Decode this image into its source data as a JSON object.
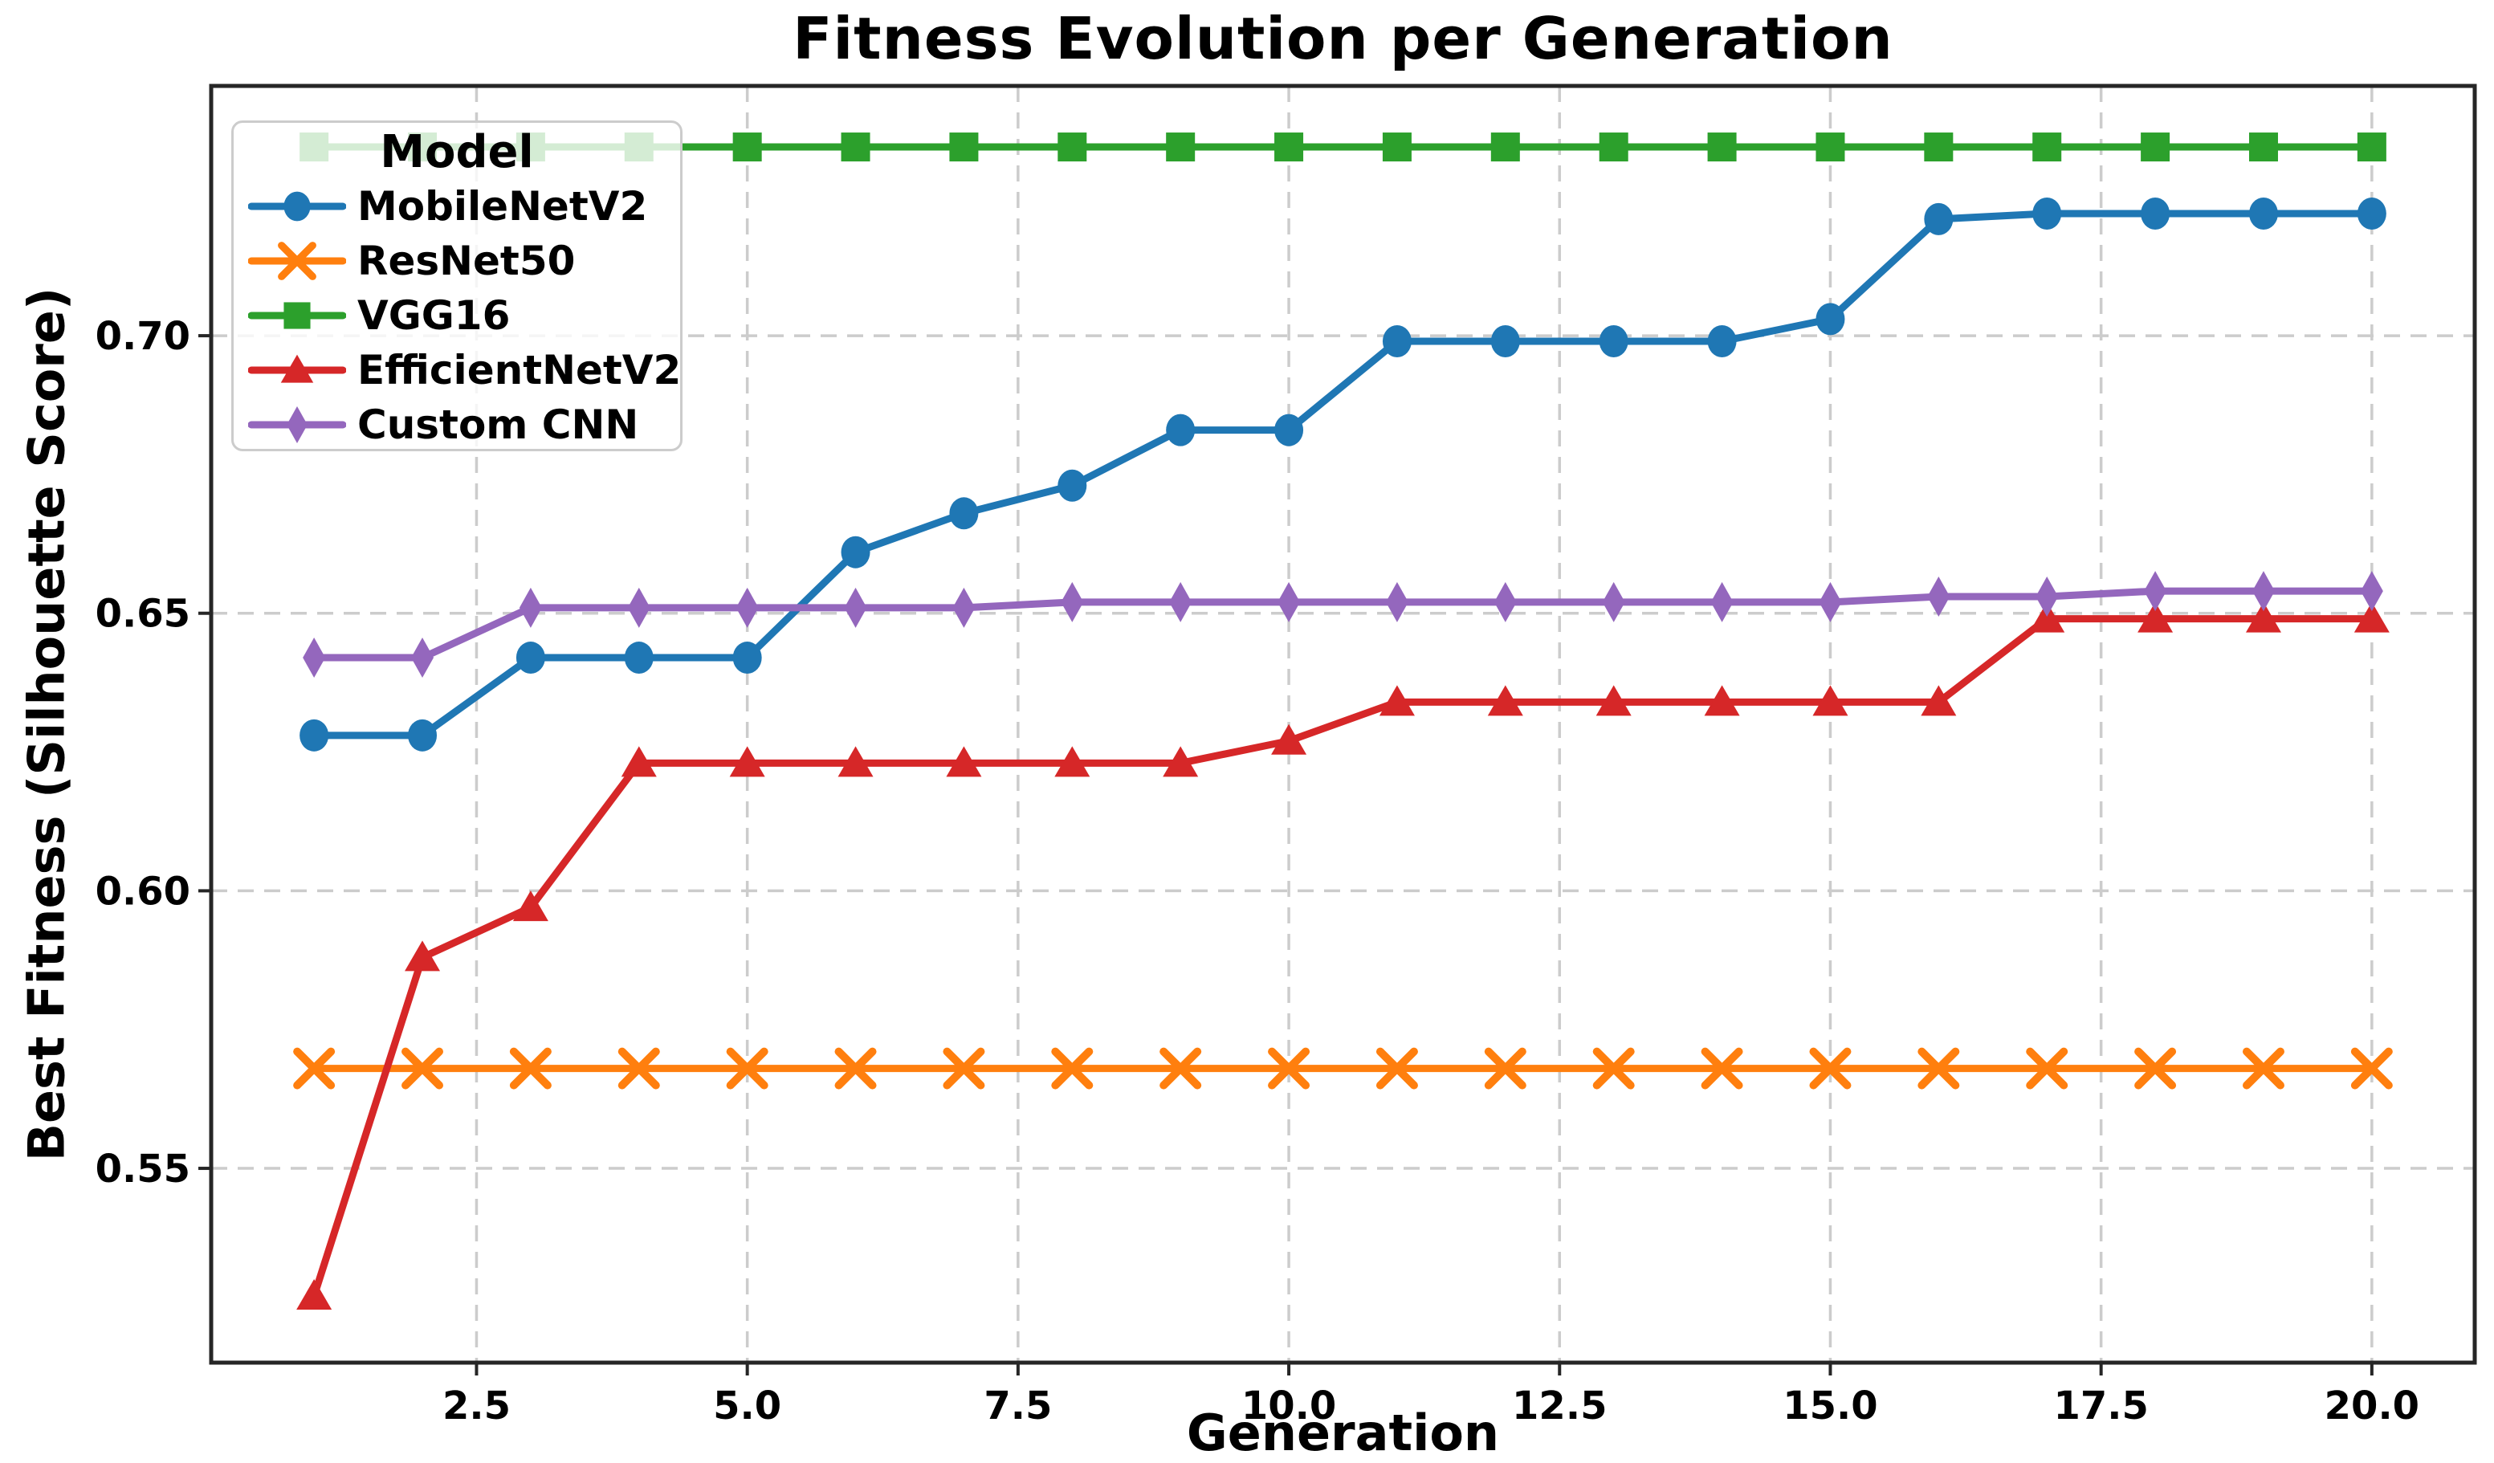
{
  "chart_data": {
    "type": "line",
    "title": "Fitness Evolution per Generation",
    "xlabel": "Generation",
    "ylabel": "Best Fitness (Silhouette Score)",
    "x": [
      1,
      2,
      3,
      4,
      5,
      6,
      7,
      8,
      9,
      10,
      11,
      12,
      13,
      14,
      15,
      16,
      17,
      18,
      19,
      20
    ],
    "series": [
      {
        "name": "MobileNetV2",
        "color": "#1f77b4",
        "marker": "circle",
        "values": [
          0.628,
          0.628,
          0.642,
          0.642,
          0.642,
          0.661,
          0.668,
          0.673,
          0.683,
          0.683,
          0.699,
          0.699,
          0.699,
          0.699,
          0.703,
          0.721,
          0.722,
          0.722,
          0.722,
          0.722
        ]
      },
      {
        "name": "ResNet50",
        "color": "#ff7f0e",
        "marker": "x",
        "values": [
          0.568,
          0.568,
          0.568,
          0.568,
          0.568,
          0.568,
          0.568,
          0.568,
          0.568,
          0.568,
          0.568,
          0.568,
          0.568,
          0.568,
          0.568,
          0.568,
          0.568,
          0.568,
          0.568,
          0.568
        ]
      },
      {
        "name": "VGG16",
        "color": "#2ca02c",
        "marker": "square",
        "values": [
          0.734,
          0.734,
          0.734,
          0.734,
          0.734,
          0.734,
          0.734,
          0.734,
          0.734,
          0.734,
          0.734,
          0.734,
          0.734,
          0.734,
          0.734,
          0.734,
          0.734,
          0.734,
          0.734,
          0.734
        ]
      },
      {
        "name": "EfficientNetV2",
        "color": "#d62728",
        "marker": "triangle",
        "values": [
          0.527,
          0.588,
          0.597,
          0.623,
          0.623,
          0.623,
          0.623,
          0.623,
          0.623,
          0.627,
          0.634,
          0.634,
          0.634,
          0.634,
          0.634,
          0.634,
          0.649,
          0.649,
          0.649,
          0.649
        ]
      },
      {
        "name": "Custom CNN",
        "color": "#9467bd",
        "marker": "thin-diamond",
        "values": [
          0.642,
          0.642,
          0.651,
          0.651,
          0.651,
          0.651,
          0.651,
          0.652,
          0.652,
          0.652,
          0.652,
          0.652,
          0.652,
          0.652,
          0.652,
          0.653,
          0.653,
          0.654,
          0.654,
          0.654
        ]
      }
    ],
    "xticks": {
      "values": [
        2.5,
        5.0,
        7.5,
        10.0,
        12.5,
        15.0,
        17.5,
        20.0
      ],
      "labels": [
        "2.5",
        "5.0",
        "7.5",
        "10.0",
        "12.5",
        "15.0",
        "17.5",
        "20.0"
      ]
    },
    "yticks": {
      "values": [
        0.55,
        0.6,
        0.65,
        0.7
      ],
      "labels": [
        "0.55",
        "0.60",
        "0.65",
        "0.70"
      ]
    },
    "xlim": [
      0.05,
      20.95
    ],
    "ylim": [
      0.515,
      0.745
    ],
    "grid": true,
    "legend": {
      "title": "Model",
      "position": "upper-left",
      "entries": [
        "MobileNetV2",
        "ResNet50",
        "VGG16",
        "EfficientNetV2",
        "Custom CNN"
      ]
    }
  },
  "styles": {
    "background": "#ffffff",
    "grid_color": "#cccccc",
    "spine_color": "#262626",
    "text_color": "#000000"
  }
}
